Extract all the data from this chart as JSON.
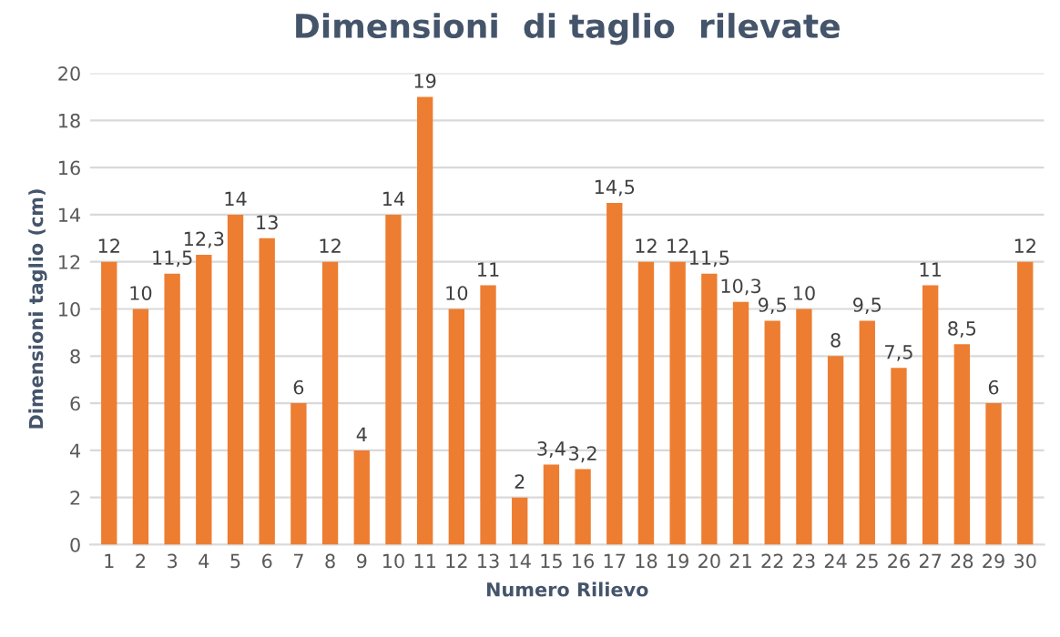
{
  "chart_data": {
    "type": "bar",
    "title": "Dimensioni  di taglio  rilevate",
    "xlabel": "Numero Rilievo",
    "ylabel": "Dimensioni taglio (cm)",
    "categories": [
      "1",
      "2",
      "3",
      "4",
      "5",
      "6",
      "7",
      "8",
      "9",
      "10",
      "11",
      "12",
      "13",
      "14",
      "15",
      "16",
      "17",
      "18",
      "19",
      "20",
      "21",
      "22",
      "23",
      "24",
      "25",
      "26",
      "27",
      "28",
      "29",
      "30"
    ],
    "values": [
      12,
      10,
      11.5,
      12.3,
      14,
      13,
      6,
      12,
      4,
      14,
      19,
      10,
      11,
      2,
      3.4,
      3.2,
      14.5,
      12,
      12,
      11.5,
      10.3,
      9.5,
      10,
      8,
      9.5,
      7.5,
      11,
      8.5,
      6,
      12
    ],
    "value_labels": [
      "12",
      "10",
      "11,5",
      "12,3",
      "14",
      "13",
      "6",
      "12",
      "4",
      "14",
      "19",
      "10",
      "11",
      "2",
      "3,4",
      "3,2",
      "14,5",
      "12",
      "12",
      "11,5",
      "10,3",
      "9,5",
      "10",
      "8",
      "9,5",
      "7,5",
      "11",
      "8,5",
      "6",
      "12"
    ],
    "color": "#ed7d31",
    "ylim": [
      0,
      20
    ],
    "yticks": [
      0,
      2,
      4,
      6,
      8,
      10,
      12,
      14,
      16,
      18,
      20
    ],
    "grid": "y"
  }
}
